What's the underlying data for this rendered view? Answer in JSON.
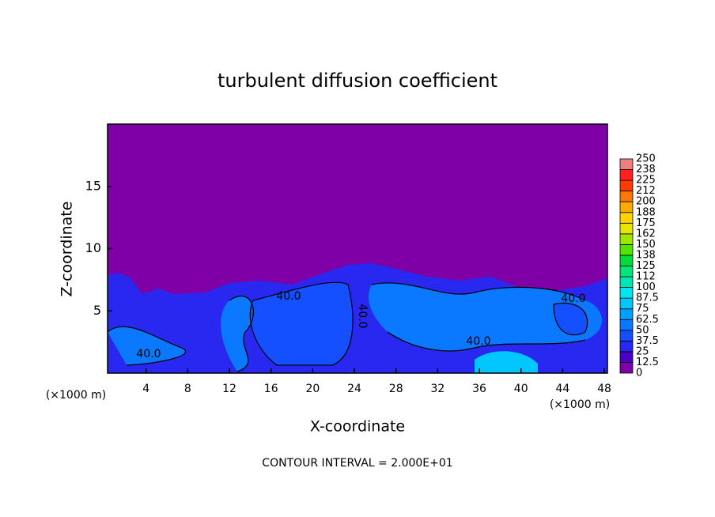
{
  "chart_data": {
    "type": "contour",
    "title": "turbulent diffusion coefficient",
    "xlabel": "X-coordinate",
    "ylabel": "Z-coordinate",
    "unit_label": "(×1000 m)",
    "footer": "CONTOUR INTERVAL = 2.000E+01",
    "xlim": [
      0.3,
      48.3
    ],
    "xticks": [
      4,
      8,
      12,
      16,
      20,
      24,
      28,
      32,
      36,
      40,
      44,
      48
    ],
    "ylim": [
      0,
      20
    ],
    "yticks": [
      5,
      10,
      15
    ],
    "colorbar_ticks": [
      0,
      12.5,
      25,
      37.5,
      50,
      62.5,
      75,
      87.5,
      100,
      {
        "value": 112.5,
        "label": "112"
      },
      125,
      {
        "value": 137.5,
        "label": "138"
      },
      150,
      {
        "value": 162.5,
        "label": "162"
      },
      175,
      {
        "value": 187.5,
        "label": "188"
      },
      200,
      {
        "value": 212.5,
        "label": "212"
      },
      225,
      {
        "value": 237.5,
        "label": "238"
      },
      250
    ],
    "colors": [
      "#7f00a6",
      "#4b00c8",
      "#2828f0",
      "#1450ff",
      "#0a78ff",
      "#00a0ff",
      "#00c8ff",
      "#00e6f0",
      "#00e6b4",
      "#00e678",
      "#00dc3c",
      "#50e600",
      "#a0e600",
      "#e6e600",
      "#ffd200",
      "#ffaa00",
      "#ff7800",
      "#ff3c00",
      "#ff2020",
      "#f08080"
    ],
    "contour_labels": [
      {
        "value": 40,
        "label": "40.0"
      },
      {
        "value": 40,
        "label": "40.0"
      },
      {
        "value": 40,
        "label": "40.0"
      },
      {
        "value": 40,
        "label": "40.0"
      },
      {
        "value": 40,
        "label": "40.0"
      }
    ]
  }
}
